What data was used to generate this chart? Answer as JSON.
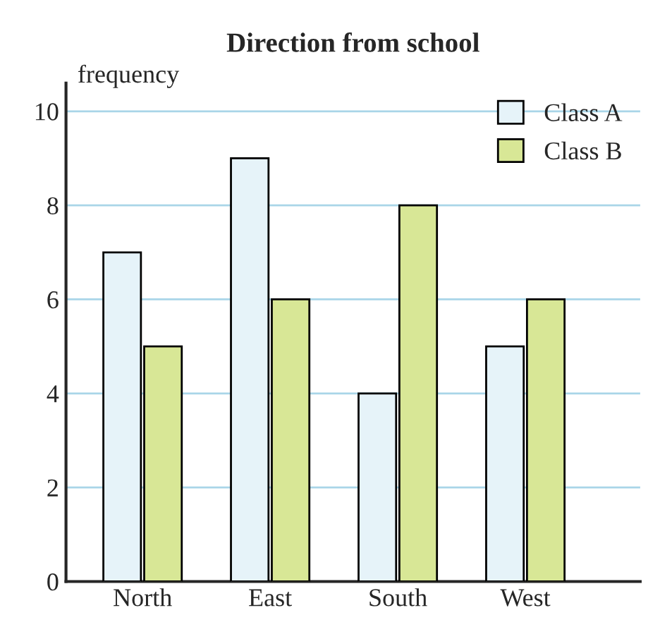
{
  "chart_data": {
    "type": "bar",
    "title": "Direction from school",
    "ylabel": "frequency",
    "categories": [
      "North",
      "East",
      "South",
      "West"
    ],
    "series": [
      {
        "name": "Class A",
        "color": "#e6f3f9",
        "values": [
          7,
          9,
          4,
          5
        ]
      },
      {
        "name": "Class B",
        "color": "#d8e796",
        "values": [
          5,
          6,
          8,
          6
        ]
      }
    ],
    "ylim": [
      0,
      10.6
    ],
    "yticks": [
      0,
      2,
      4,
      6,
      8,
      10
    ],
    "grid": "y",
    "legend": "top right"
  }
}
